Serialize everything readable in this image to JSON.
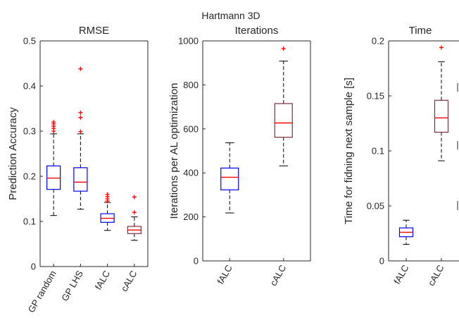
{
  "figure": {
    "suptitle": "Hartmann  3D"
  },
  "chart_data": [
    {
      "type": "box",
      "title": "RMSE",
      "xlabel": "",
      "ylabel": "Prediction Accuracy",
      "ylim": [
        0,
        0.5
      ],
      "yticks": [
        "0",
        "0.1",
        "0.2",
        "0.3",
        "0.4",
        "0.5"
      ],
      "categories": [
        "GP random",
        "GP LHS",
        "fALC",
        "cALC"
      ],
      "box_colors": [
        "#0000ff",
        "#0000ff",
        "#0000ff",
        "#7e2f3e"
      ],
      "median_color": "#ff0000",
      "outlier_color": "#ff0000",
      "boxes": [
        {
          "name": "GP random",
          "whisker_low": 0.113,
          "q1": 0.171,
          "median": 0.196,
          "q3": 0.223,
          "whisker_high": 0.294,
          "outliers": [
            0.3,
            0.306,
            0.311,
            0.316,
            0.32
          ]
        },
        {
          "name": "GP LHS",
          "whisker_low": 0.127,
          "q1": 0.167,
          "median": 0.187,
          "q3": 0.219,
          "whisker_high": 0.294,
          "outliers": [
            0.299,
            0.33,
            0.341,
            0.438
          ]
        },
        {
          "name": "fALC",
          "whisker_low": 0.08,
          "q1": 0.098,
          "median": 0.107,
          "q3": 0.117,
          "whisker_high": 0.142,
          "outliers": [
            0.145,
            0.15,
            0.155,
            0.16
          ]
        },
        {
          "name": "cALC",
          "whisker_low": 0.058,
          "q1": 0.073,
          "median": 0.081,
          "q3": 0.089,
          "whisker_high": 0.11,
          "outliers": [
            0.12,
            0.154
          ]
        }
      ]
    },
    {
      "type": "box",
      "title": "Iterations",
      "xlabel": "",
      "ylabel": "Iterations per AL optimization",
      "ylim": [
        0,
        1000
      ],
      "yticks": [
        "0",
        "200",
        "400",
        "600",
        "800",
        "1000"
      ],
      "categories": [
        "fALC",
        "cALC"
      ],
      "box_colors": [
        "#0000ff",
        "#7e2f3e"
      ],
      "median_color": "#ff0000",
      "outlier_color": "#ff0000",
      "boxes": [
        {
          "name": "fALC",
          "whisker_low": 218,
          "q1": 323,
          "median": 380,
          "q3": 422,
          "whisker_high": 537,
          "outliers": []
        },
        {
          "name": "cALC",
          "whisker_low": 432,
          "q1": 562,
          "median": 627,
          "q3": 715,
          "whisker_high": 908,
          "outliers": [
            965
          ]
        }
      ]
    },
    {
      "type": "box",
      "title": "Time",
      "xlabel": "",
      "ylabel": "Time for fidning next sample [s]",
      "ylim": [
        0,
        0.2
      ],
      "yticks": [
        "0",
        "0.05",
        "0.1",
        "0.15",
        "0.2"
      ],
      "categories": [
        "fALC",
        "cALC"
      ],
      "box_colors": [
        "#0000ff",
        "#7e2f3e"
      ],
      "median_color": "#ff0000",
      "outlier_color": "#ff0000",
      "boxes": [
        {
          "name": "fALC",
          "whisker_low": 0.015,
          "q1": 0.022,
          "median": 0.026,
          "q3": 0.03,
          "whisker_high": 0.037,
          "outliers": []
        },
        {
          "name": "cALC",
          "whisker_low": 0.091,
          "q1": 0.117,
          "median": 0.13,
          "q3": 0.146,
          "whisker_high": 0.181,
          "outliers": [
            0.194
          ]
        }
      ]
    }
  ]
}
